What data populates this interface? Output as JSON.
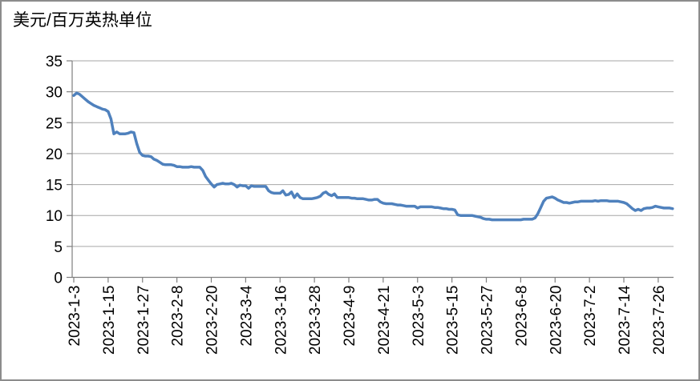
{
  "frame": {
    "background": "#ffffff",
    "border_color": "#8c8c8c"
  },
  "chart_data": {
    "type": "line",
    "title": "美元/百万英热单位",
    "line_color": "#4F81BD",
    "axis_color": "#7f7f7f",
    "gridline_color": "#a6a6a6",
    "text_color": "#000000",
    "grid": "horizontal",
    "legend": "none",
    "ylim": [
      0,
      35
    ],
    "ytick_step": 5,
    "yticks": [
      0,
      5,
      10,
      15,
      20,
      25,
      30,
      35
    ],
    "x_start": "2023-1-3",
    "x_frequency": "daily",
    "xtick_interval_days": 12,
    "xtick_labels": [
      "2023-1-3",
      "2023-1-15",
      "2023-1-27",
      "2023-2-8",
      "2023-2-20",
      "2023-3-4",
      "2023-3-16",
      "2023-3-28",
      "2023-4-9",
      "2023-4-21",
      "2023-5-3",
      "2023-5-15",
      "2023-5-27",
      "2023-6-8",
      "2023-6-20",
      "2023-7-2",
      "2023-7-14",
      "2023-7-26"
    ],
    "values": [
      29.4,
      29.8,
      29.6,
      29.2,
      28.8,
      28.4,
      28.1,
      27.8,
      27.6,
      27.4,
      27.2,
      27.1,
      26.8,
      25.6,
      23.2,
      23.5,
      23.2,
      23.2,
      23.2,
      23.3,
      23.5,
      23.4,
      21.6,
      20.2,
      19.7,
      19.6,
      19.6,
      19.5,
      19.1,
      18.9,
      18.6,
      18.3,
      18.2,
      18.2,
      18.2,
      18.1,
      17.9,
      17.9,
      17.8,
      17.8,
      17.8,
      17.9,
      17.8,
      17.8,
      17.8,
      17.3,
      16.3,
      15.7,
      15.1,
      14.6,
      15.0,
      15.1,
      15.2,
      15.1,
      15.1,
      15.2,
      15.0,
      14.6,
      14.9,
      14.8,
      14.8,
      14.4,
      14.8,
      14.7,
      14.7,
      14.7,
      14.7,
      14.7,
      14.0,
      13.7,
      13.6,
      13.6,
      13.6,
      14.0,
      13.3,
      13.4,
      13.8,
      12.9,
      13.5,
      12.9,
      12.7,
      12.7,
      12.7,
      12.7,
      12.8,
      12.9,
      13.1,
      13.6,
      13.8,
      13.4,
      13.2,
      13.5,
      12.9,
      12.9,
      12.9,
      12.9,
      12.9,
      12.8,
      12.8,
      12.7,
      12.7,
      12.7,
      12.6,
      12.5,
      12.5,
      12.6,
      12.6,
      12.2,
      12.0,
      11.9,
      11.9,
      11.9,
      11.8,
      11.7,
      11.7,
      11.6,
      11.5,
      11.5,
      11.5,
      11.5,
      11.2,
      11.4,
      11.4,
      11.4,
      11.4,
      11.4,
      11.3,
      11.3,
      11.2,
      11.1,
      11.1,
      11.0,
      11.0,
      10.9,
      10.1,
      10.0,
      10.0,
      10.0,
      10.0,
      10.0,
      9.9,
      9.8,
      9.7,
      9.5,
      9.4,
      9.4,
      9.3,
      9.3,
      9.3,
      9.3,
      9.3,
      9.3,
      9.3,
      9.3,
      9.3,
      9.3,
      9.3,
      9.4,
      9.4,
      9.4,
      9.4,
      9.6,
      10.3,
      11.3,
      12.3,
      12.8,
      12.9,
      13.0,
      12.8,
      12.5,
      12.3,
      12.1,
      12.1,
      12.0,
      12.1,
      12.2,
      12.2,
      12.3,
      12.3,
      12.3,
      12.3,
      12.3,
      12.4,
      12.3,
      12.4,
      12.4,
      12.4,
      12.3,
      12.3,
      12.3,
      12.3,
      12.2,
      12.1,
      11.9,
      11.5,
      11.1,
      10.8,
      11.0,
      10.8,
      11.1,
      11.2,
      11.2,
      11.3,
      11.5,
      11.4,
      11.3,
      11.2,
      11.2,
      11.2,
      11.1
    ]
  }
}
